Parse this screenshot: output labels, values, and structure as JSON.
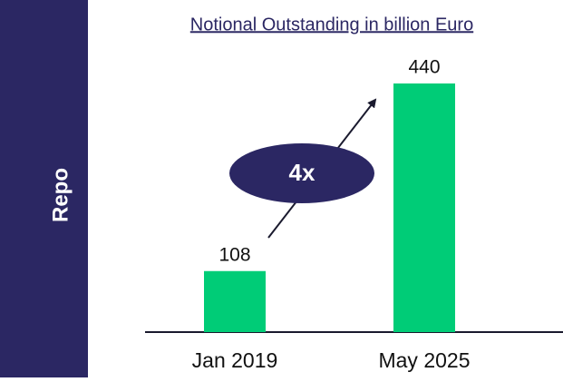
{
  "chart_data": {
    "type": "bar",
    "title": "Notional Outstanding in billion Euro",
    "side_label": "Repo",
    "annotation": "4x",
    "categories": [
      "Jan 2019",
      "May 2025"
    ],
    "values": [
      108,
      440
    ],
    "color": "#00cc77",
    "side_color": "#2b2763"
  }
}
